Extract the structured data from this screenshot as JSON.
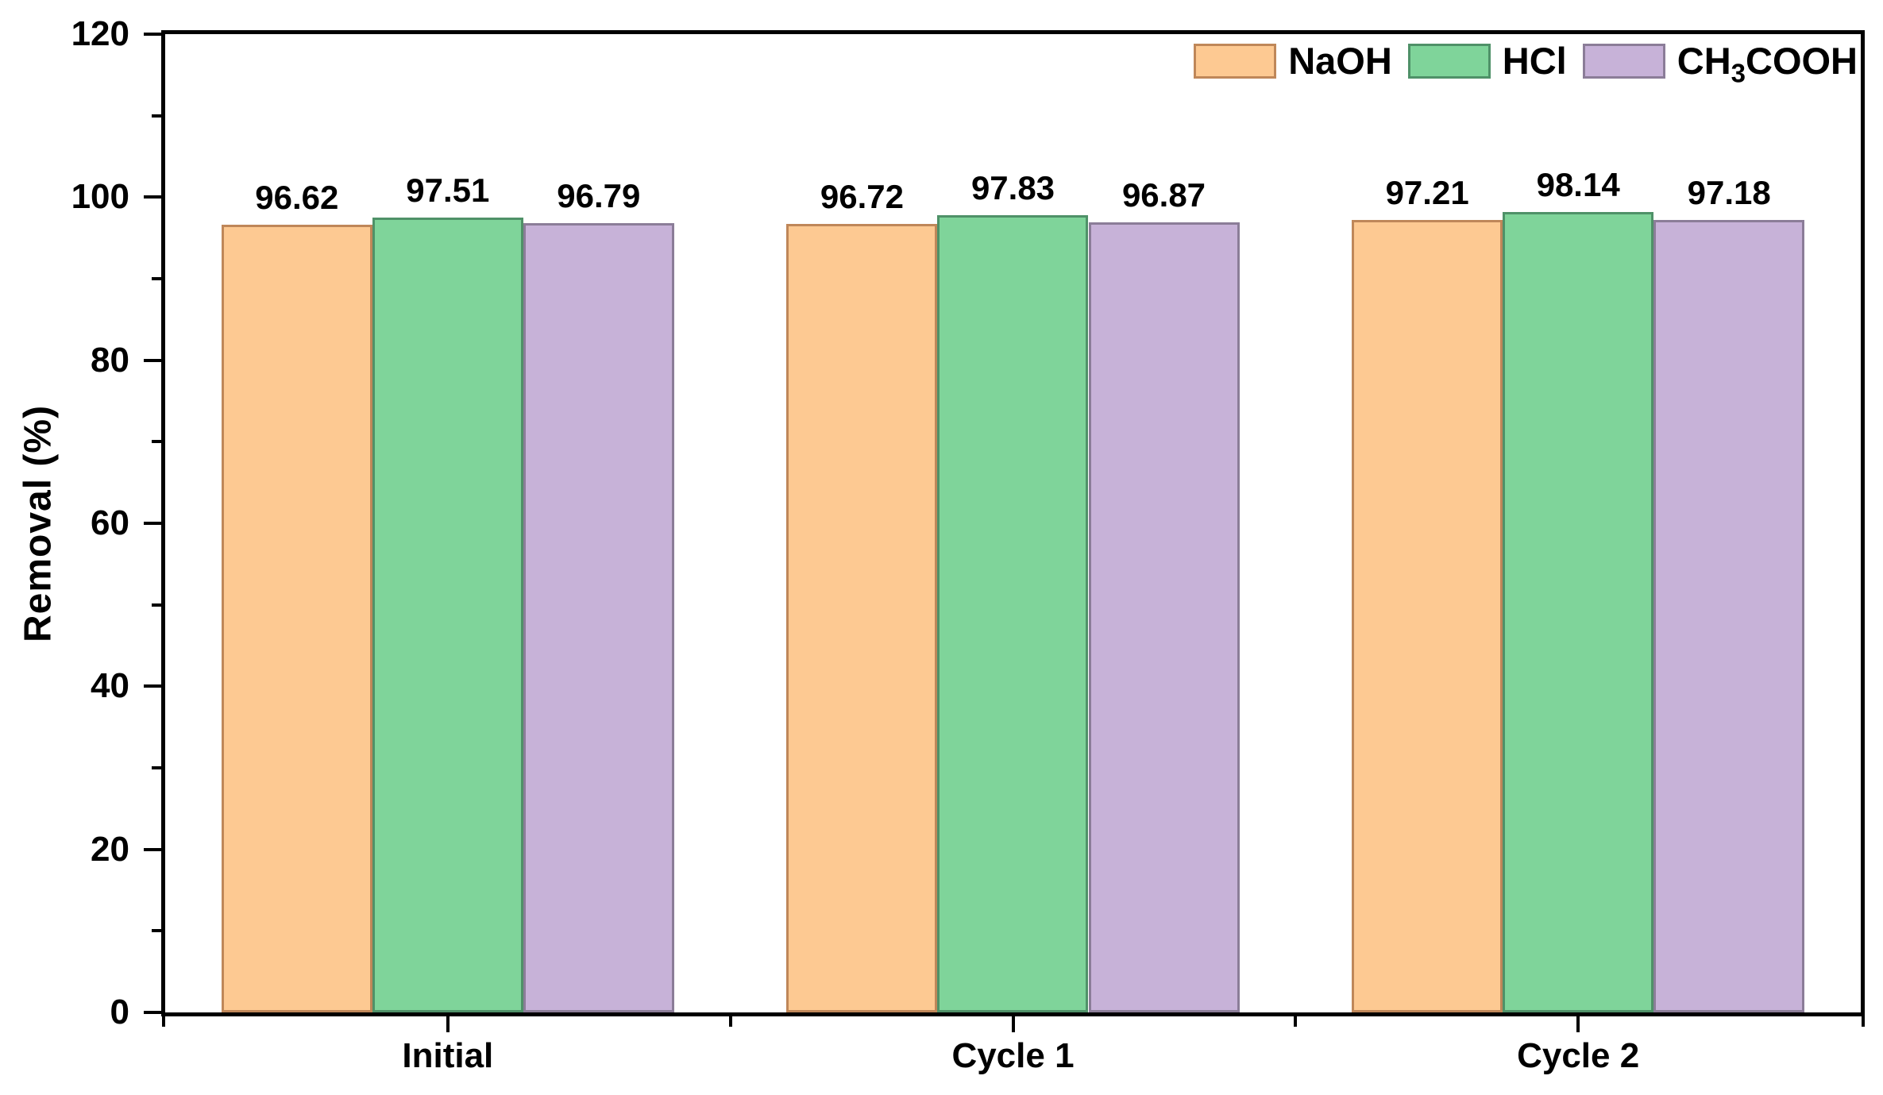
{
  "style": {
    "background": "#FFFFFF",
    "axis_color": "#000000",
    "text_color": "#000000"
  },
  "chart_data": {
    "type": "bar",
    "title": "",
    "xlabel": "",
    "ylabel": "Removal (%)",
    "ylim": [
      0,
      120
    ],
    "y_major_ticks": [
      0,
      20,
      40,
      60,
      80,
      100,
      120
    ],
    "y_minor_step": 10,
    "grid": false,
    "legend_position": "top-right",
    "categories": [
      "Initial",
      "Cycle 1",
      "Cycle 2"
    ],
    "series": [
      {
        "name": "NaOH",
        "label_parts": {
          "pre": "NaOH",
          "sub": "",
          "post": ""
        },
        "fill": "#FDC992",
        "border": "#BF8759",
        "values": [
          96.62,
          96.72,
          97.21
        ],
        "labels": [
          "96.62",
          "96.72",
          "97.21"
        ]
      },
      {
        "name": "HCl",
        "label_parts": {
          "pre": "HCl",
          "sub": "",
          "post": ""
        },
        "fill": "#7FD49A",
        "border": "#4F9168",
        "values": [
          97.51,
          97.83,
          98.14
        ],
        "labels": [
          "97.51",
          "97.83",
          "98.14"
        ]
      },
      {
        "name": "CH3COOH",
        "label_parts": {
          "pre": "CH",
          "sub": "3",
          "post": "COOH"
        },
        "fill": "#C7B2D8",
        "border": "#8B7D98",
        "values": [
          96.79,
          96.87,
          97.18
        ],
        "labels": [
          "96.79",
          "96.87",
          "97.18"
        ]
      }
    ]
  }
}
